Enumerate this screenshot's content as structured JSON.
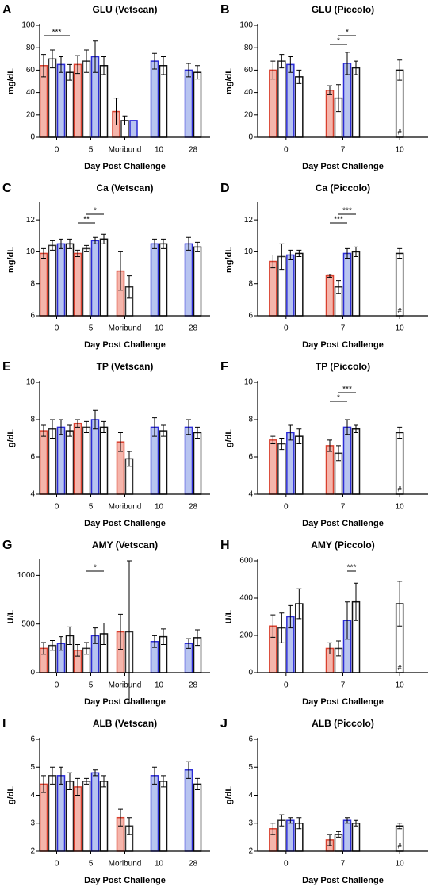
{
  "chart_data": [
    {
      "type": "bar",
      "letter": "A",
      "title": "GLU (Vetscan)",
      "ylabel": "mg/dL",
      "xlabel": "Day Post Challenge",
      "categories": [
        "0",
        "5",
        "Moribund",
        "10",
        "28"
      ],
      "ylim": [
        0,
        100
      ],
      "yticks": [
        0,
        20,
        40,
        60,
        80,
        100
      ],
      "series": [
        {
          "color": "#d9402e",
          "fill": "#f5b5ab",
          "values": [
            64,
            65,
            23,
            null,
            null
          ],
          "errors": [
            10,
            8,
            12,
            null,
            null
          ]
        },
        {
          "color": "#333333",
          "fill": "#ffffff",
          "values": [
            70,
            68,
            15,
            null,
            null
          ],
          "errors": [
            8,
            10,
            4,
            null,
            null
          ]
        },
        {
          "color": "#2b2bd6",
          "fill": "#b8c4f0",
          "values": [
            65,
            72,
            15,
            68,
            60
          ],
          "errors": [
            7,
            14,
            null,
            7,
            6
          ]
        },
        {
          "color": "#111111",
          "fill": "#ffffff",
          "values": [
            58,
            64,
            null,
            64,
            58
          ],
          "errors": [
            7,
            8,
            null,
            8,
            6
          ]
        }
      ],
      "annotations": [
        {
          "text": "***",
          "category": 0,
          "from": 0,
          "to": 3
        }
      ]
    },
    {
      "type": "bar",
      "letter": "B",
      "title": "GLU (Piccolo)",
      "ylabel": "mg/dL",
      "xlabel": "Day Post Challenge",
      "categories": [
        "0",
        "7",
        "10"
      ],
      "ylim": [
        0,
        100
      ],
      "yticks": [
        0,
        20,
        40,
        60,
        80,
        100
      ],
      "series": [
        {
          "color": "#d9402e",
          "fill": "#f5b5ab",
          "values": [
            60,
            42,
            null
          ],
          "errors": [
            8,
            4,
            null
          ]
        },
        {
          "color": "#333333",
          "fill": "#ffffff",
          "values": [
            68,
            35,
            null
          ],
          "errors": [
            6,
            12,
            null
          ]
        },
        {
          "color": "#2b2bd6",
          "fill": "#b8c4f0",
          "values": [
            65,
            66,
            null
          ],
          "errors": [
            7,
            10,
            null
          ]
        },
        {
          "color": "#111111",
          "fill": "#ffffff",
          "values": [
            54,
            62,
            60
          ],
          "errors": [
            6,
            6,
            9
          ]
        }
      ],
      "annotations": [
        {
          "text": "*",
          "category": 1,
          "from": 1,
          "to": 3
        },
        {
          "text": "*",
          "category": 1,
          "from": 0,
          "to": 2
        },
        {
          "text": "#",
          "category": 2
        }
      ]
    },
    {
      "type": "bar",
      "letter": "C",
      "title": "Ca (Vetscan)",
      "ylabel": "mg/dL",
      "xlabel": "Day Post Challenge",
      "categories": [
        "0",
        "5",
        "Moribund",
        "10",
        "28"
      ],
      "ylim": [
        6,
        13
      ],
      "yticks": [
        6,
        8,
        10,
        12
      ],
      "series": [
        {
          "color": "#d9402e",
          "fill": "#f5b5ab",
          "values": [
            9.9,
            9.9,
            8.8,
            null,
            null
          ],
          "errors": [
            0.3,
            0.2,
            1.2,
            null,
            null
          ]
        },
        {
          "color": "#333333",
          "fill": "#ffffff",
          "values": [
            10.4,
            10.2,
            7.8,
            null,
            null
          ],
          "errors": [
            0.3,
            0.2,
            0.7,
            null,
            null
          ]
        },
        {
          "color": "#2b2bd6",
          "fill": "#b8c4f0",
          "values": [
            10.5,
            10.7,
            null,
            10.5,
            10.5
          ],
          "errors": [
            0.3,
            0.2,
            null,
            0.3,
            0.4
          ]
        },
        {
          "color": "#111111",
          "fill": "#ffffff",
          "values": [
            10.5,
            10.8,
            null,
            10.5,
            10.3
          ],
          "errors": [
            0.3,
            0.3,
            null,
            0.3,
            0.3
          ]
        }
      ],
      "annotations": [
        {
          "text": "*",
          "category": 1,
          "from": 1,
          "to": 3
        },
        {
          "text": "**",
          "category": 1,
          "from": 0,
          "to": 2
        }
      ]
    },
    {
      "type": "bar",
      "letter": "D",
      "title": "Ca (Piccolo)",
      "ylabel": "mg/dL",
      "xlabel": "Day Post Challenge",
      "categories": [
        "0",
        "7",
        "10"
      ],
      "ylim": [
        6,
        13
      ],
      "yticks": [
        6,
        8,
        10,
        12
      ],
      "series": [
        {
          "color": "#d9402e",
          "fill": "#f5b5ab",
          "values": [
            9.4,
            8.5,
            null
          ],
          "errors": [
            0.4,
            0.1,
            null
          ]
        },
        {
          "color": "#333333",
          "fill": "#ffffff",
          "values": [
            9.7,
            7.8,
            null
          ],
          "errors": [
            0.8,
            0.4,
            null
          ]
        },
        {
          "color": "#2b2bd6",
          "fill": "#b8c4f0",
          "values": [
            9.8,
            9.9,
            null
          ],
          "errors": [
            0.3,
            0.3,
            null
          ]
        },
        {
          "color": "#111111",
          "fill": "#ffffff",
          "values": [
            9.9,
            10.0,
            9.9
          ],
          "errors": [
            0.2,
            0.3,
            0.3
          ]
        }
      ],
      "annotations": [
        {
          "text": "***",
          "category": 1,
          "from": 1,
          "to": 3
        },
        {
          "text": "***",
          "category": 1,
          "from": 0,
          "to": 2
        },
        {
          "text": "#",
          "category": 2
        }
      ]
    },
    {
      "type": "bar",
      "letter": "E",
      "title": "TP (Vetscan)",
      "ylabel": "g/dL",
      "xlabel": "Day Post Challenge",
      "categories": [
        "0",
        "5",
        "Moribund",
        "10",
        "28"
      ],
      "ylim": [
        4,
        10
      ],
      "yticks": [
        4,
        6,
        8,
        10
      ],
      "series": [
        {
          "color": "#d9402e",
          "fill": "#f5b5ab",
          "values": [
            7.4,
            7.8,
            6.8,
            null,
            null
          ],
          "errors": [
            0.3,
            0.2,
            0.5,
            null,
            null
          ]
        },
        {
          "color": "#333333",
          "fill": "#ffffff",
          "values": [
            7.5,
            7.6,
            5.9,
            null,
            null
          ],
          "errors": [
            0.5,
            0.3,
            0.4,
            null,
            null
          ]
        },
        {
          "color": "#2b2bd6",
          "fill": "#b8c4f0",
          "values": [
            7.6,
            8.0,
            null,
            7.6,
            7.6
          ],
          "errors": [
            0.4,
            0.5,
            null,
            0.5,
            0.4
          ]
        },
        {
          "color": "#111111",
          "fill": "#ffffff",
          "values": [
            7.4,
            7.6,
            null,
            7.4,
            7.3
          ],
          "errors": [
            0.3,
            0.3,
            null,
            0.3,
            0.3
          ]
        }
      ],
      "annotations": []
    },
    {
      "type": "bar",
      "letter": "F",
      "title": "TP (Piccolo)",
      "ylabel": "g/dL",
      "xlabel": "Day Post Challenge",
      "categories": [
        "0",
        "7",
        "10"
      ],
      "ylim": [
        4,
        10
      ],
      "yticks": [
        4,
        6,
        8,
        10
      ],
      "series": [
        {
          "color": "#d9402e",
          "fill": "#f5b5ab",
          "values": [
            6.9,
            6.6,
            null
          ],
          "errors": [
            0.2,
            0.3,
            null
          ]
        },
        {
          "color": "#333333",
          "fill": "#ffffff",
          "values": [
            6.7,
            6.2,
            null
          ],
          "errors": [
            0.3,
            0.4,
            null
          ]
        },
        {
          "color": "#2b2bd6",
          "fill": "#b8c4f0",
          "values": [
            7.3,
            7.6,
            null
          ],
          "errors": [
            0.4,
            0.4,
            null
          ]
        },
        {
          "color": "#111111",
          "fill": "#ffffff",
          "values": [
            7.1,
            7.5,
            7.3
          ],
          "errors": [
            0.4,
            0.2,
            0.3
          ]
        }
      ],
      "annotations": [
        {
          "text": "***",
          "category": 1,
          "from": 1,
          "to": 3
        },
        {
          "text": "*",
          "category": 1,
          "from": 0,
          "to": 2
        },
        {
          "text": "#",
          "category": 2
        }
      ]
    },
    {
      "type": "bar",
      "letter": "G",
      "title": "AMY (Vetscan)",
      "ylabel": "U/L",
      "xlabel": "Day Post Challenge",
      "categories": [
        "0",
        "5",
        "Moribund",
        "10",
        "28"
      ],
      "ylim": [
        0,
        1150
      ],
      "yticks": [
        0,
        500,
        1000
      ],
      "series": [
        {
          "color": "#d9402e",
          "fill": "#f5b5ab",
          "values": [
            250,
            230,
            420,
            null,
            null
          ],
          "errors": [
            60,
            60,
            180,
            null,
            null
          ]
        },
        {
          "color": "#333333",
          "fill": "#ffffff",
          "values": [
            280,
            250,
            420,
            null,
            null
          ],
          "errors": [
            50,
            60,
            730,
            null,
            null
          ]
        },
        {
          "color": "#2b2bd6",
          "fill": "#b8c4f0",
          "values": [
            300,
            380,
            null,
            320,
            300
          ],
          "errors": [
            70,
            80,
            null,
            60,
            50
          ]
        },
        {
          "color": "#111111",
          "fill": "#ffffff",
          "values": [
            380,
            400,
            null,
            370,
            360
          ],
          "errors": [
            90,
            110,
            null,
            80,
            80
          ]
        }
      ],
      "annotations": [
        {
          "text": "*",
          "category": 1,
          "from": 1,
          "to": 3
        }
      ]
    },
    {
      "type": "bar",
      "letter": "H",
      "title": "AMY (Piccolo)",
      "ylabel": "U/L",
      "xlabel": "Day Post Challenge",
      "categories": [
        "0",
        "7",
        "10"
      ],
      "ylim": [
        0,
        600
      ],
      "yticks": [
        0,
        200,
        400,
        600
      ],
      "series": [
        {
          "color": "#d9402e",
          "fill": "#f5b5ab",
          "values": [
            250,
            130,
            null
          ],
          "errors": [
            60,
            30,
            null
          ]
        },
        {
          "color": "#333333",
          "fill": "#ffffff",
          "values": [
            240,
            130,
            null
          ],
          "errors": [
            80,
            40,
            null
          ]
        },
        {
          "color": "#2b2bd6",
          "fill": "#b8c4f0",
          "values": [
            300,
            280,
            null
          ],
          "errors": [
            60,
            100,
            null
          ]
        },
        {
          "color": "#111111",
          "fill": "#ffffff",
          "values": [
            370,
            380,
            370
          ],
          "errors": [
            80,
            100,
            120
          ]
        }
      ],
      "annotations": [
        {
          "text": "***",
          "category": 1,
          "from": 2,
          "to": 3
        },
        {
          "text": "#",
          "category": 2
        }
      ]
    },
    {
      "type": "bar",
      "letter": "I",
      "title": "ALB (Vetscan)",
      "ylabel": "g/dL",
      "xlabel": "Day Post Challenge",
      "categories": [
        "0",
        "5",
        "Moribund",
        "10",
        "28"
      ],
      "ylim": [
        2,
        6
      ],
      "yticks": [
        2,
        3,
        4,
        5,
        6
      ],
      "series": [
        {
          "color": "#d9402e",
          "fill": "#f5b5ab",
          "values": [
            4.4,
            4.3,
            3.2,
            null,
            null
          ],
          "errors": [
            0.3,
            0.3,
            0.3,
            null,
            null
          ]
        },
        {
          "color": "#333333",
          "fill": "#ffffff",
          "values": [
            4.7,
            4.5,
            2.9,
            null,
            null
          ],
          "errors": [
            0.3,
            0.1,
            0.3,
            null,
            null
          ]
        },
        {
          "color": "#2b2bd6",
          "fill": "#b8c4f0",
          "values": [
            4.7,
            4.8,
            null,
            4.7,
            4.9
          ],
          "errors": [
            0.3,
            0.1,
            null,
            0.3,
            0.3
          ]
        },
        {
          "color": "#111111",
          "fill": "#ffffff",
          "values": [
            4.5,
            4.5,
            null,
            4.5,
            4.4
          ],
          "errors": [
            0.3,
            0.2,
            null,
            0.2,
            0.2
          ]
        }
      ],
      "annotations": []
    },
    {
      "type": "bar",
      "letter": "J",
      "title": "ALB (Piccolo)",
      "ylabel": "g/dL",
      "xlabel": "Day Post Challenge",
      "categories": [
        "0",
        "7",
        "10"
      ],
      "ylim": [
        2,
        6
      ],
      "yticks": [
        2,
        3,
        4,
        5,
        6
      ],
      "series": [
        {
          "color": "#d9402e",
          "fill": "#f5b5ab",
          "values": [
            2.8,
            2.4,
            null
          ],
          "errors": [
            0.2,
            0.2,
            null
          ]
        },
        {
          "color": "#333333",
          "fill": "#ffffff",
          "values": [
            3.1,
            2.6,
            null
          ],
          "errors": [
            0.2,
            0.1,
            null
          ]
        },
        {
          "color": "#2b2bd6",
          "fill": "#b8c4f0",
          "values": [
            3.1,
            3.1,
            null
          ],
          "errors": [
            0.1,
            0.1,
            null
          ]
        },
        {
          "color": "#111111",
          "fill": "#ffffff",
          "values": [
            3.0,
            3.0,
            2.9
          ],
          "errors": [
            0.2,
            0.1,
            0.1
          ]
        }
      ],
      "annotations": [
        {
          "text": "#",
          "category": 2
        }
      ]
    }
  ]
}
